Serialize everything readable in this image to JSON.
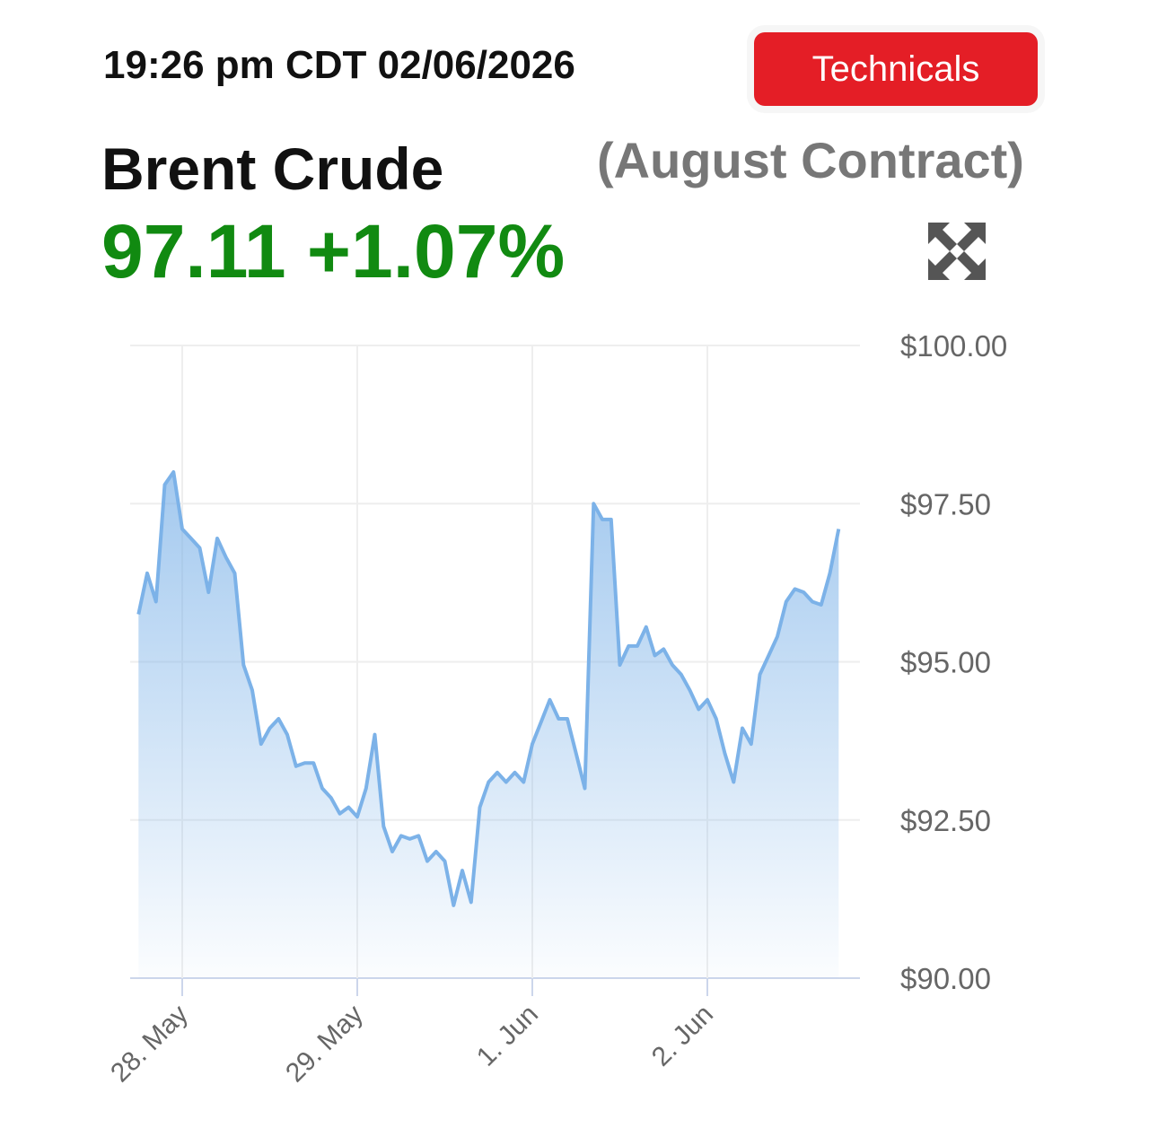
{
  "header": {
    "timestamp": "19:26 pm CDT 02/06/2026",
    "button": "Technicals",
    "title": "Brent Crude",
    "subtitle": "(August Contract)",
    "price": "97.11",
    "change": "+1.07%"
  },
  "chart_data": {
    "type": "area",
    "categories": [
      null,
      null,
      null,
      null,
      null,
      "28. May",
      null,
      null,
      null,
      null,
      null,
      null,
      null,
      null,
      null,
      null,
      null,
      null,
      null,
      null,
      null,
      null,
      null,
      null,
      null,
      "29. May",
      null,
      null,
      null,
      null,
      null,
      null,
      null,
      null,
      null,
      null,
      null,
      null,
      null,
      null,
      null,
      null,
      null,
      null,
      null,
      "1. Jun",
      null,
      null,
      null,
      null,
      null,
      null,
      null,
      null,
      null,
      null,
      null,
      null,
      null,
      null,
      null,
      null,
      null,
      null,
      null,
      "2. Jun",
      null,
      null,
      null,
      null,
      null,
      null,
      null,
      null,
      null,
      null,
      null,
      null,
      null,
      null,
      null
    ],
    "values": [
      95.75,
      96.4,
      95.95,
      97.8,
      98.0,
      97.1,
      96.95,
      96.8,
      96.1,
      96.95,
      96.65,
      96.4,
      94.95,
      94.55,
      93.7,
      93.95,
      94.1,
      93.85,
      93.35,
      93.4,
      93.4,
      93.0,
      92.85,
      92.6,
      92.7,
      92.55,
      93.0,
      93.85,
      92.4,
      92.0,
      92.25,
      92.2,
      92.25,
      91.85,
      92.0,
      91.85,
      91.15,
      91.7,
      91.2,
      92.7,
      93.1,
      93.25,
      93.1,
      93.25,
      93.1,
      93.7,
      94.05,
      94.4,
      94.1,
      94.1,
      93.55,
      93.0,
      97.5,
      97.25,
      97.25,
      94.95,
      95.25,
      95.25,
      95.55,
      95.1,
      95.2,
      94.95,
      94.8,
      94.55,
      94.25,
      94.4,
      94.1,
      93.55,
      93.1,
      93.95,
      93.7,
      94.8,
      95.1,
      95.4,
      95.95,
      96.15,
      96.1,
      95.95,
      95.9,
      96.4,
      97.1
    ],
    "color": "#7cb2e8",
    "ylim": [
      90,
      100
    ],
    "yticks": [
      {
        "value": 90,
        "label": "$90.00"
      },
      {
        "value": 92.5,
        "label": "$92.50"
      },
      {
        "value": 95,
        "label": "$95.00"
      },
      {
        "value": 97.5,
        "label": "$97.50"
      },
      {
        "value": 100,
        "label": "$100.00"
      }
    ],
    "grid": true
  }
}
